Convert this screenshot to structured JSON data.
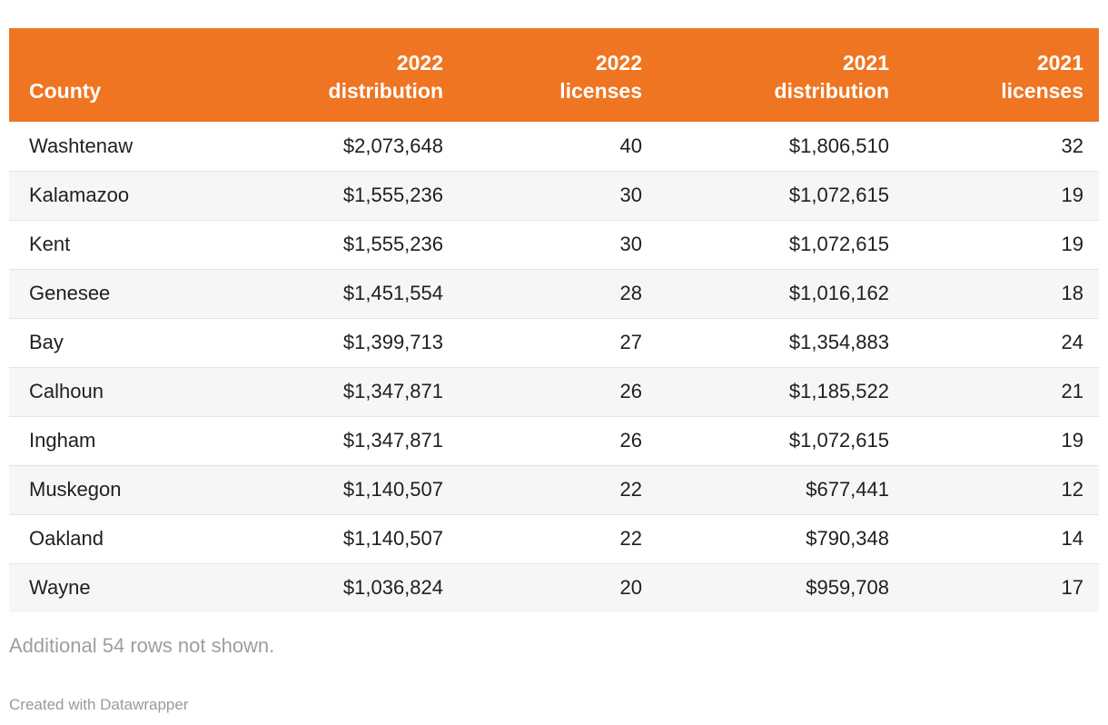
{
  "chart_data": {
    "type": "table",
    "columns": [
      {
        "label": "County",
        "align": "left"
      },
      {
        "label": "2022\ndistribution",
        "align": "right"
      },
      {
        "label": "2022\nlicenses",
        "align": "right"
      },
      {
        "label": "2021\ndistribution",
        "align": "right"
      },
      {
        "label": "2021\nlicenses",
        "align": "right"
      }
    ],
    "rows": [
      [
        "Washtenaw",
        "$2,073,648",
        "40",
        "$1,806,510",
        "32"
      ],
      [
        "Kalamazoo",
        "$1,555,236",
        "30",
        "$1,072,615",
        "19"
      ],
      [
        "Kent",
        "$1,555,236",
        "30",
        "$1,072,615",
        "19"
      ],
      [
        "Genesee",
        "$1,451,554",
        "28",
        "$1,016,162",
        "18"
      ],
      [
        "Bay",
        "$1,399,713",
        "27",
        "$1,354,883",
        "24"
      ],
      [
        "Calhoun",
        "$1,347,871",
        "26",
        "$1,185,522",
        "21"
      ],
      [
        "Ingham",
        "$1,347,871",
        "26",
        "$1,072,615",
        "19"
      ],
      [
        "Muskegon",
        "$1,140,507",
        "22",
        "$677,441",
        "12"
      ],
      [
        "Oakland",
        "$1,140,507",
        "22",
        "$790,348",
        "14"
      ],
      [
        "Wayne",
        "$1,036,824",
        "20",
        "$959,708",
        "17"
      ]
    ],
    "note": "Additional 54 rows not shown.",
    "attribution": "Created with Datawrapper",
    "colors": {
      "header_bg": "#ef7522",
      "header_text": "#ffffff",
      "row_alt_bg": "#f6f6f6",
      "row_border": "#e3e3e3",
      "body_text": "#1f1f1f",
      "note_text": "#9e9e9e",
      "attribution_text": "#9a9a9a",
      "page_bg": "#ffffff"
    }
  }
}
